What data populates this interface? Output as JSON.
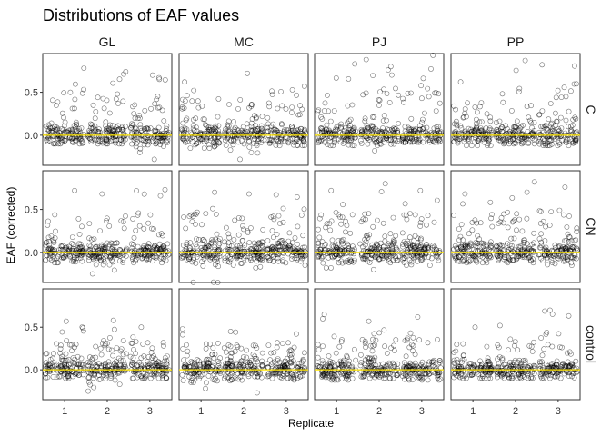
{
  "chart_data": {
    "type": "scatter",
    "title": "Distributions of EAF values",
    "xlabel": "Replicate",
    "ylabel": "EAF (corrected)",
    "facet_columns": [
      "GL",
      "MC",
      "PJ",
      "PP"
    ],
    "facet_rows": [
      "C",
      "CN",
      "control"
    ],
    "x_categories": [
      "1",
      "2",
      "3"
    ],
    "y_ticks": [
      "0.0",
      "0.5"
    ],
    "ylim": [
      -0.35,
      0.95
    ],
    "reference_line": {
      "y": 0,
      "color": "#FFE600"
    },
    "point_style": "open circles, jittered",
    "series": [
      {
        "col": "GL",
        "row": "C",
        "replicates": [
          {
            "x": 1,
            "min": -0.1,
            "max": 0.78
          },
          {
            "x": 2,
            "min": -0.1,
            "max": 0.74
          },
          {
            "x": 3,
            "min": -0.28,
            "max": 0.7
          }
        ]
      },
      {
        "col": "MC",
        "row": "C",
        "replicates": [
          {
            "x": 1,
            "min": -0.15,
            "max": 0.62
          },
          {
            "x": 2,
            "min": -0.28,
            "max": 0.72
          },
          {
            "x": 3,
            "min": -0.12,
            "max": 0.57
          }
        ]
      },
      {
        "col": "PJ",
        "row": "C",
        "replicates": [
          {
            "x": 1,
            "min": -0.12,
            "max": 0.83
          },
          {
            "x": 2,
            "min": -0.18,
            "max": 0.88
          },
          {
            "x": 3,
            "min": -0.08,
            "max": 0.93
          }
        ]
      },
      {
        "col": "PP",
        "row": "C",
        "replicates": [
          {
            "x": 1,
            "min": -0.12,
            "max": 0.62
          },
          {
            "x": 2,
            "min": -0.1,
            "max": 0.87
          },
          {
            "x": 3,
            "min": -0.12,
            "max": 0.82
          }
        ]
      },
      {
        "col": "GL",
        "row": "CN",
        "replicates": [
          {
            "x": 1,
            "min": -0.12,
            "max": 0.72
          },
          {
            "x": 2,
            "min": -0.25,
            "max": 0.68
          },
          {
            "x": 3,
            "min": -0.12,
            "max": 0.73
          }
        ]
      },
      {
        "col": "MC",
        "row": "CN",
        "replicates": [
          {
            "x": 1,
            "min": -0.35,
            "max": 0.7
          },
          {
            "x": 2,
            "min": -0.18,
            "max": 0.68
          },
          {
            "x": 3,
            "min": -0.15,
            "max": 0.67
          }
        ]
      },
      {
        "col": "PJ",
        "row": "CN",
        "replicates": [
          {
            "x": 1,
            "min": -0.18,
            "max": 0.72
          },
          {
            "x": 2,
            "min": -0.2,
            "max": 0.8
          },
          {
            "x": 3,
            "min": -0.15,
            "max": 0.72
          }
        ]
      },
      {
        "col": "PP",
        "row": "CN",
        "replicates": [
          {
            "x": 1,
            "min": -0.12,
            "max": 0.68
          },
          {
            "x": 2,
            "min": -0.12,
            "max": 0.82
          },
          {
            "x": 3,
            "min": -0.15,
            "max": 0.76
          }
        ]
      },
      {
        "col": "GL",
        "row": "control",
        "replicates": [
          {
            "x": 1,
            "min": -0.1,
            "max": 0.57
          },
          {
            "x": 2,
            "min": -0.25,
            "max": 0.58
          },
          {
            "x": 3,
            "min": -0.1,
            "max": 0.5
          }
        ]
      },
      {
        "col": "MC",
        "row": "control",
        "replicates": [
          {
            "x": 1,
            "min": -0.22,
            "max": 0.48
          },
          {
            "x": 2,
            "min": -0.27,
            "max": 0.45
          },
          {
            "x": 3,
            "min": -0.12,
            "max": 0.42
          }
        ]
      },
      {
        "col": "PJ",
        "row": "control",
        "replicates": [
          {
            "x": 1,
            "min": -0.12,
            "max": 0.65
          },
          {
            "x": 2,
            "min": -0.1,
            "max": 0.57
          },
          {
            "x": 3,
            "min": -0.12,
            "max": 0.62
          }
        ]
      },
      {
        "col": "PP",
        "row": "control",
        "replicates": [
          {
            "x": 1,
            "min": -0.1,
            "max": 0.5
          },
          {
            "x": 2,
            "min": -0.1,
            "max": 0.52
          },
          {
            "x": 3,
            "min": -0.1,
            "max": 0.7
          }
        ]
      }
    ]
  }
}
